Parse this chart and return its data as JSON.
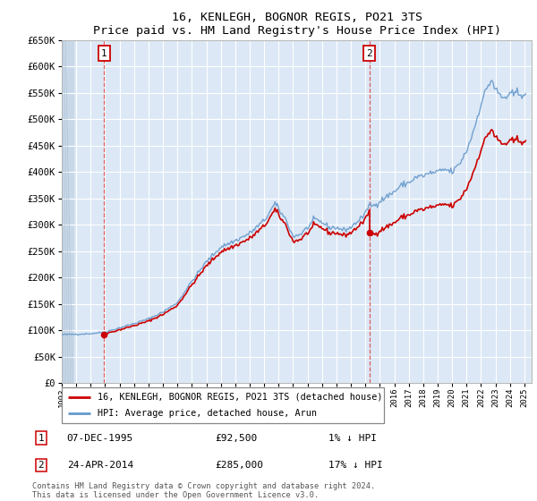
{
  "title": "16, KENLEGH, BOGNOR REGIS, PO21 3TS",
  "subtitle": "Price paid vs. HM Land Registry's House Price Index (HPI)",
  "ylabel_ticks": [
    0,
    50000,
    100000,
    150000,
    200000,
    250000,
    300000,
    350000,
    400000,
    450000,
    500000,
    550000,
    600000,
    650000
  ],
  "ylabel_labels": [
    "£0",
    "£50K",
    "£100K",
    "£150K",
    "£200K",
    "£250K",
    "£300K",
    "£350K",
    "£400K",
    "£450K",
    "£500K",
    "£550K",
    "£600K",
    "£650K"
  ],
  "ylim": [
    0,
    650000
  ],
  "x_start_year": 1993,
  "x_end_year": 2025,
  "ann1_year": 1995.917,
  "ann1_price": 92500,
  "ann1_date": "07-DEC-1995",
  "ann1_text_price": "£92,500",
  "ann1_text_pct": "1% ↓ HPI",
  "ann2_year": 2014.292,
  "ann2_price": 285000,
  "ann2_date": "24-APR-2014",
  "ann2_text_price": "£285,000",
  "ann2_text_pct": "17% ↓ HPI",
  "legend_line1": "16, KENLEGH, BOGNOR REGIS, PO21 3TS (detached house)",
  "legend_line2": "HPI: Average price, detached house, Arun",
  "footer": "Contains HM Land Registry data © Crown copyright and database right 2024.\nThis data is licensed under the Open Government Licence v3.0.",
  "price_color": "#cc0000",
  "hpi_color": "#6699cc",
  "plot_bg": "#dce8f5",
  "fig_bg": "#ffffff",
  "grid_color": "#ffffff"
}
